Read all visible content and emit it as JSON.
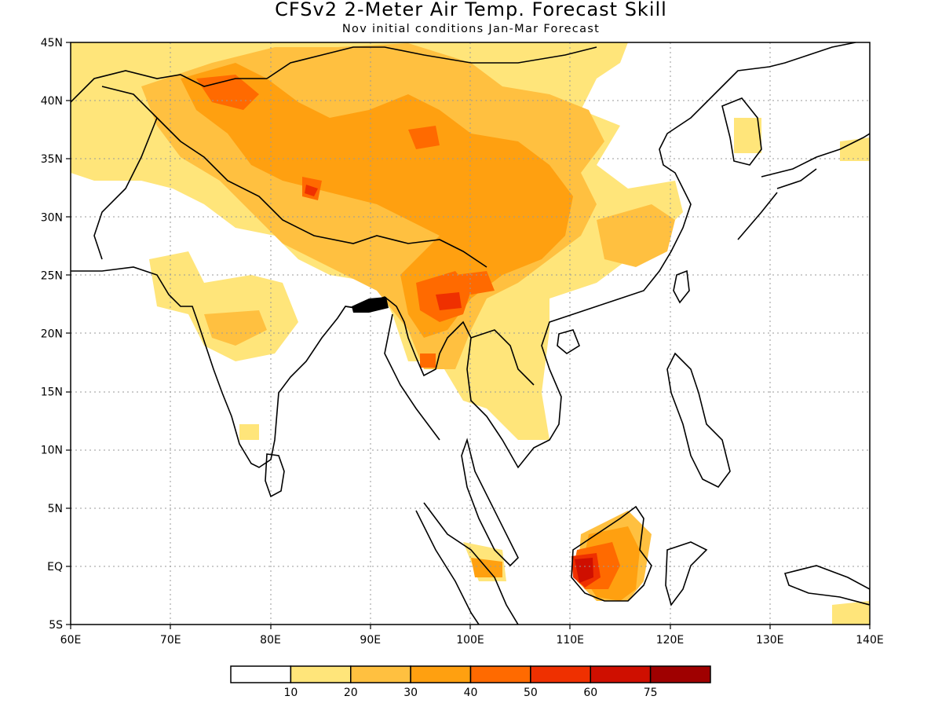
{
  "title": "CFSv2 2-Meter Air Temp. Forecast Skill",
  "subtitle": "Nov initial conditions  Jan-Mar Forecast",
  "map": {
    "lon_range": [
      60,
      140
    ],
    "lat_range": [
      -5,
      45
    ],
    "lon_ticks": [
      "60E",
      "70E",
      "80E",
      "90E",
      "100E",
      "110E",
      "120E",
      "130E",
      "140E"
    ],
    "lat_ticks": [
      "5S",
      "EQ",
      "5N",
      "10N",
      "15N",
      "20N",
      "25N",
      "30N",
      "35N",
      "40N",
      "45N"
    ],
    "grid": true,
    "skill_regions": [
      {
        "name": "Tibetan Plateau / western China",
        "level": 3
      },
      {
        "name": "Tarim / Kyrgyzstan",
        "level": 3
      },
      {
        "name": "Northern India plains",
        "level": 2
      },
      {
        "name": "Myanmar / Yunnan",
        "level": 4
      },
      {
        "name": "Borneo",
        "level": 6
      },
      {
        "name": "Central India",
        "level": 1
      },
      {
        "name": "Indochina",
        "level": 2
      }
    ]
  },
  "colorbar": {
    "colors": [
      "#ffffff",
      "#ffe57a",
      "#ffc040",
      "#ffa010",
      "#ff6a00",
      "#ef3000",
      "#cf0f00",
      "#9f0000"
    ],
    "labels": [
      "10",
      "20",
      "30",
      "40",
      "50",
      "60",
      "75"
    ]
  }
}
